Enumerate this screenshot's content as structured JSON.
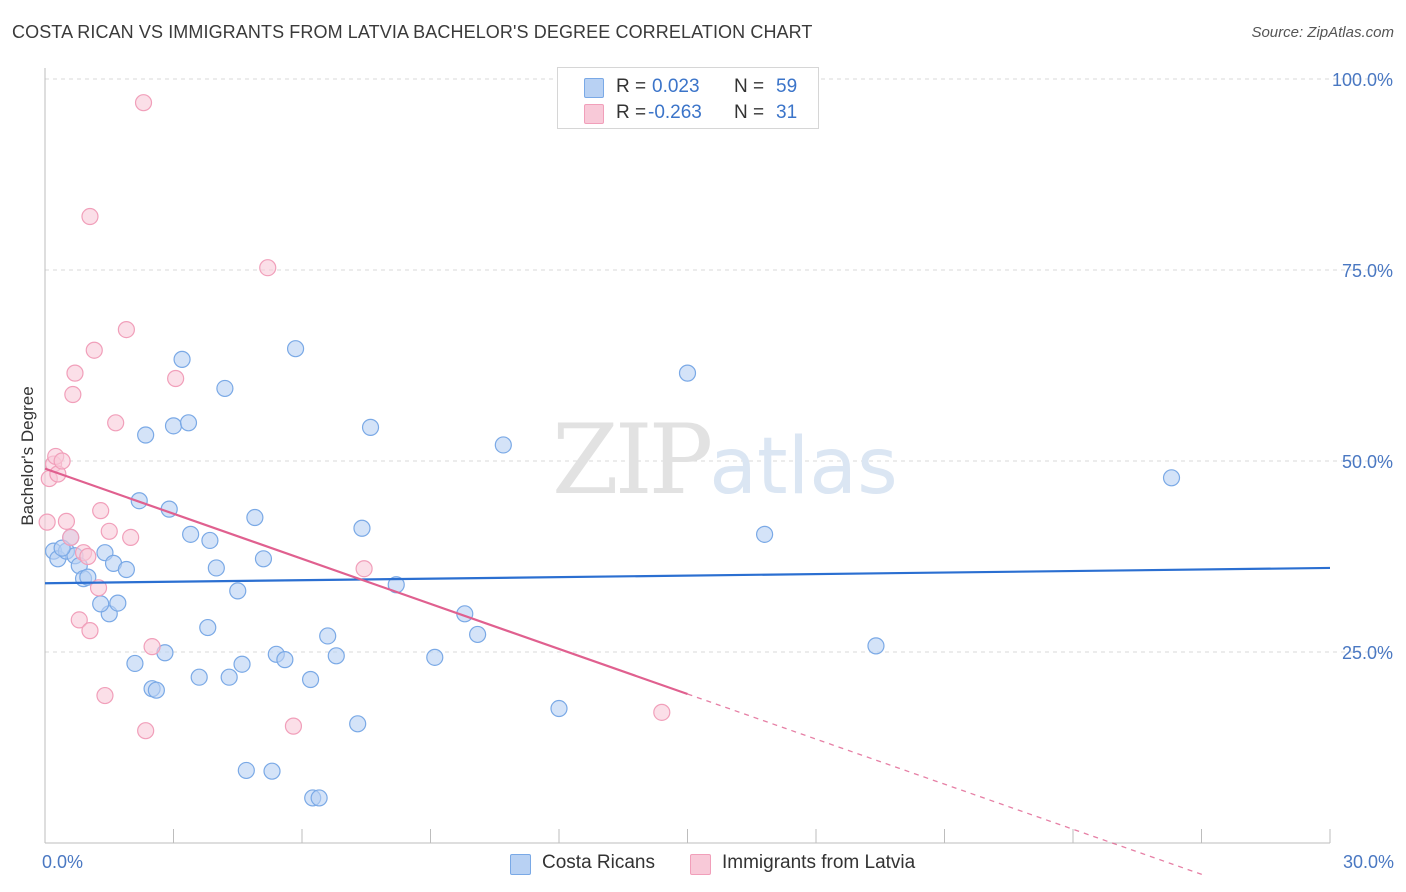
{
  "title": "COSTA RICAN VS IMMIGRANTS FROM LATVIA BACHELOR'S DEGREE CORRELATION CHART",
  "source": "Source: ZipAtlas.com",
  "watermark": {
    "zip": "ZIP",
    "atlas": "atlas"
  },
  "legend_top": {
    "rows": [
      {
        "r_label": "R =",
        "r_value": "0.023",
        "n_label": "N =",
        "n_value": "59"
      },
      {
        "r_label": "R =",
        "r_value": "-0.263",
        "n_label": "N =",
        "n_value": "31"
      }
    ]
  },
  "chart_data": {
    "type": "scatter",
    "title": "COSTA RICAN VS IMMIGRANTS FROM LATVIA BACHELOR'S DEGREE CORRELATION CHART",
    "xlabel": "",
    "ylabel": "Bachelor's Degree",
    "xlim": [
      0,
      30
    ],
    "ylim": [
      0,
      100
    ],
    "x_tick_labels": {
      "min": "0.0%",
      "max": "30.0%"
    },
    "y_ticks": [
      {
        "value": 25,
        "label": "25.0%"
      },
      {
        "value": 50,
        "label": "50.0%"
      },
      {
        "value": 75,
        "label": "75.0%"
      },
      {
        "value": 100,
        "label": "100.0%"
      }
    ],
    "grid": true,
    "series": [
      {
        "name": "Costa Ricans",
        "color": "#7aa9e6",
        "fill": "#b8d1f3",
        "line_color": "#2b6fd1",
        "trend": {
          "x0": 0.0,
          "y0": 34.0,
          "x1": 30.0,
          "y1": 36.0,
          "dashed_from": null
        },
        "points": [
          [
            0.2,
            38.2
          ],
          [
            0.3,
            37.2
          ],
          [
            0.5,
            38.2
          ],
          [
            0.6,
            40.0
          ],
          [
            0.7,
            37.6
          ],
          [
            0.8,
            36.3
          ],
          [
            0.9,
            34.6
          ],
          [
            1.0,
            34.8
          ],
          [
            1.4,
            38.0
          ],
          [
            1.6,
            36.6
          ],
          [
            1.5,
            30.0
          ],
          [
            1.7,
            31.4
          ],
          [
            1.9,
            35.8
          ],
          [
            2.1,
            23.5
          ],
          [
            2.2,
            44.8
          ],
          [
            2.35,
            53.4
          ],
          [
            2.5,
            20.2
          ],
          [
            2.6,
            20.0
          ],
          [
            2.8,
            24.9
          ],
          [
            2.9,
            43.7
          ],
          [
            3.0,
            54.6
          ],
          [
            3.2,
            63.3
          ],
          [
            3.35,
            55.0
          ],
          [
            3.4,
            40.4
          ],
          [
            3.6,
            21.7
          ],
          [
            3.8,
            28.2
          ],
          [
            3.85,
            39.6
          ],
          [
            4.0,
            36.0
          ],
          [
            4.2,
            59.5
          ],
          [
            4.3,
            21.7
          ],
          [
            4.5,
            33.0
          ],
          [
            4.6,
            23.4
          ],
          [
            4.7,
            9.5
          ],
          [
            4.9,
            42.6
          ],
          [
            5.1,
            37.2
          ],
          [
            5.3,
            9.4
          ],
          [
            5.4,
            24.7
          ],
          [
            5.6,
            24.0
          ],
          [
            5.85,
            64.7
          ],
          [
            6.2,
            21.4
          ],
          [
            6.25,
            5.9
          ],
          [
            6.4,
            5.9
          ],
          [
            6.6,
            27.1
          ],
          [
            6.8,
            24.5
          ],
          [
            7.3,
            15.6
          ],
          [
            7.4,
            41.2
          ],
          [
            7.6,
            54.4
          ],
          [
            8.2,
            33.8
          ],
          [
            9.1,
            24.3
          ],
          [
            9.8,
            30.0
          ],
          [
            10.1,
            27.3
          ],
          [
            10.7,
            52.1
          ],
          [
            12.0,
            17.6
          ],
          [
            15.0,
            61.5
          ],
          [
            16.8,
            40.4
          ],
          [
            19.4,
            25.8
          ],
          [
            26.3,
            47.8
          ],
          [
            0.4,
            38.6
          ],
          [
            1.3,
            31.3
          ]
        ]
      },
      {
        "name": "Immigrants from Latvia",
        "color": "#f19fba",
        "fill": "#f8c9d8",
        "line_color": "#e0608f",
        "trend": {
          "x0": 0.0,
          "y0": 49.0,
          "x1": 30.0,
          "y1": -10.0,
          "dashed_from": 15.0
        },
        "points": [
          [
            0.05,
            42.0
          ],
          [
            0.1,
            47.7
          ],
          [
            0.2,
            49.6
          ],
          [
            0.25,
            50.6
          ],
          [
            0.3,
            48.3
          ],
          [
            0.4,
            50.0
          ],
          [
            0.5,
            42.1
          ],
          [
            0.6,
            40.0
          ],
          [
            0.65,
            58.7
          ],
          [
            0.7,
            61.5
          ],
          [
            0.8,
            29.2
          ],
          [
            0.9,
            38.0
          ],
          [
            1.0,
            37.5
          ],
          [
            1.05,
            27.8
          ],
          [
            1.15,
            64.5
          ],
          [
            1.25,
            33.4
          ],
          [
            1.3,
            43.5
          ],
          [
            1.4,
            19.3
          ],
          [
            1.5,
            40.8
          ],
          [
            1.65,
            55.0
          ],
          [
            1.9,
            67.2
          ],
          [
            2.0,
            40.0
          ],
          [
            2.3,
            96.9
          ],
          [
            2.35,
            14.7
          ],
          [
            2.5,
            25.7
          ],
          [
            3.05,
            60.8
          ],
          [
            1.05,
            82.0
          ],
          [
            5.2,
            75.3
          ],
          [
            5.8,
            15.3
          ],
          [
            7.45,
            35.9
          ],
          [
            14.4,
            17.1
          ]
        ]
      }
    ]
  }
}
